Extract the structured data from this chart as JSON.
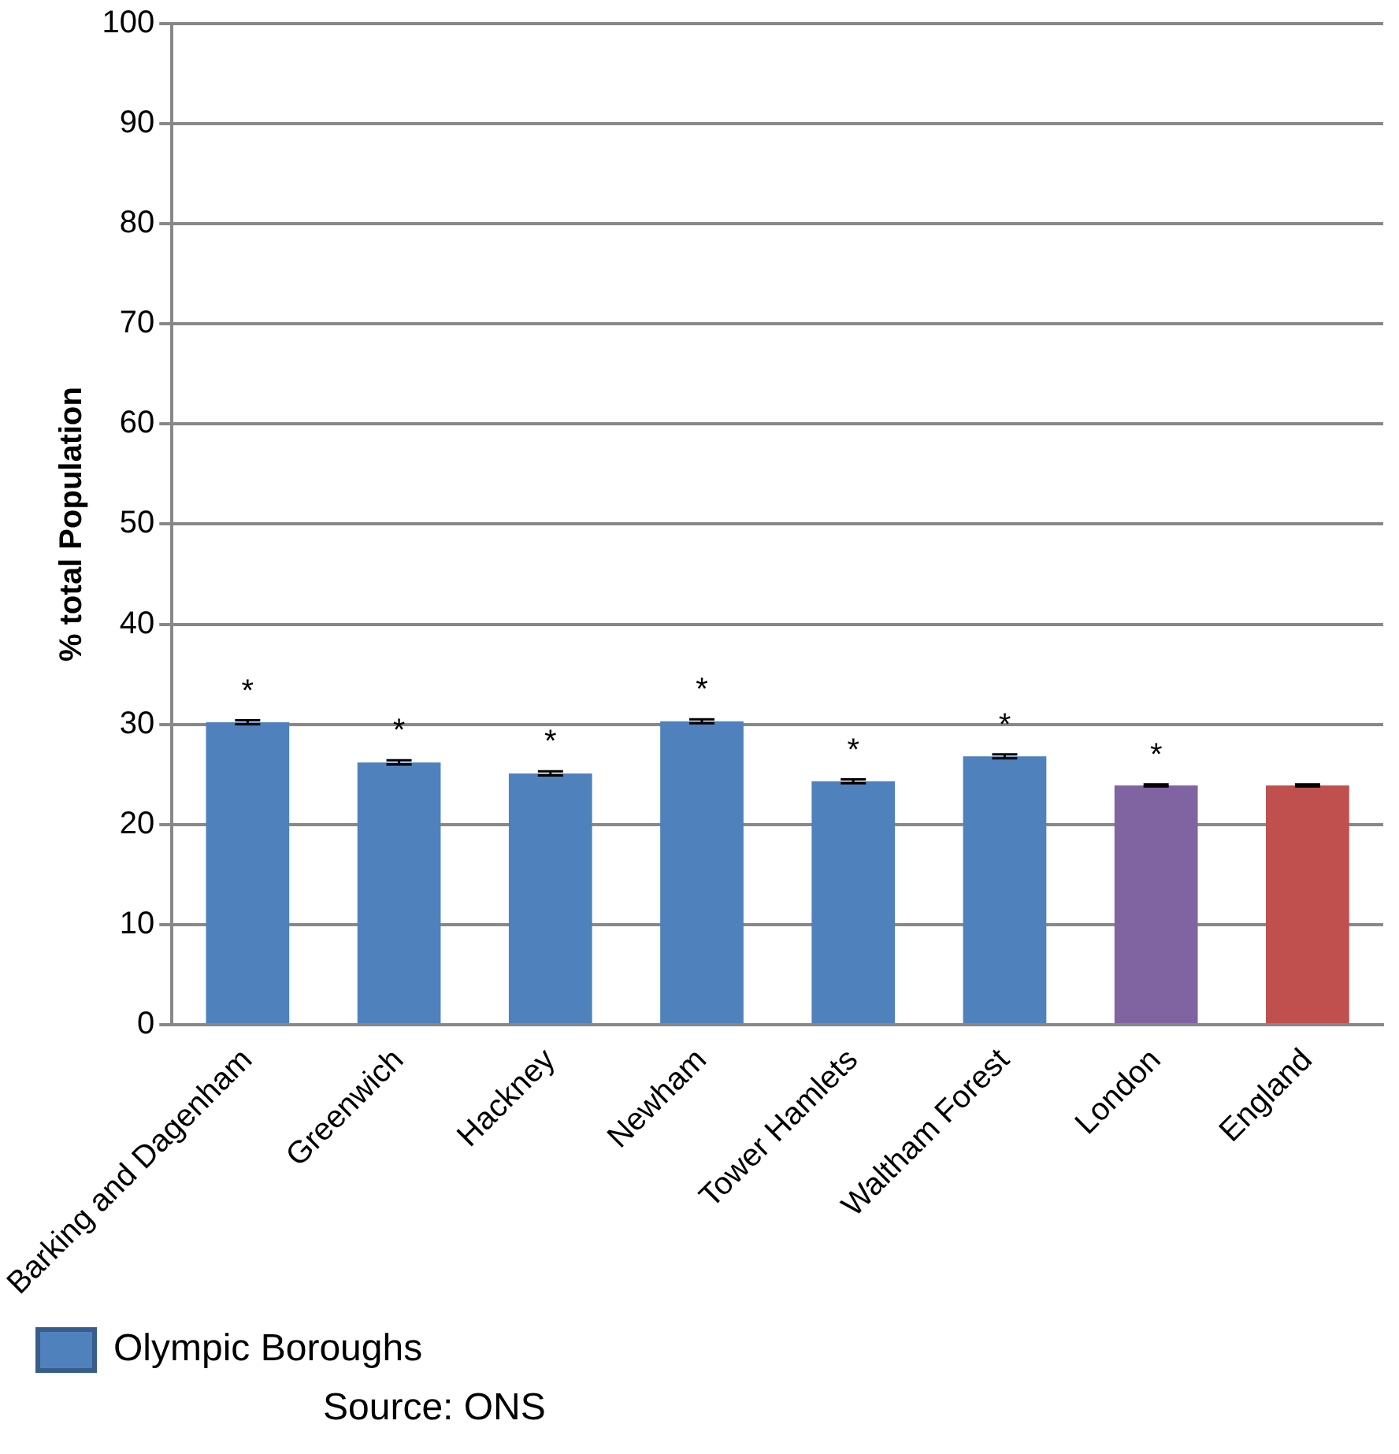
{
  "chart_data": {
    "type": "bar",
    "ylabel": "% total Population",
    "categories": [
      "Barking and Dagenham",
      "Greenwich",
      "Hackney",
      "Newham",
      "Tower Hamlets",
      "Waltham Forest",
      "London",
      "England"
    ],
    "series": [
      {
        "name": "Olympic Boroughs",
        "color": "#4f81bd",
        "colors": [
          "#4f81bd",
          "#4f81bd",
          "#4f81bd",
          "#4f81bd",
          "#4f81bd",
          "#4f81bd",
          "#8064a2",
          "#c0504d"
        ],
        "values": [
          30.2,
          26.2,
          25.1,
          30.3,
          24.3,
          26.8,
          23.9,
          23.9
        ],
        "errors": [
          0.2,
          0.2,
          0.2,
          0.2,
          0.2,
          0.2,
          0.1,
          0.1
        ],
        "value_labels": [
          "*",
          "*",
          "*",
          "*",
          "*",
          "*",
          "*",
          null
        ]
      }
    ],
    "ylim": [
      0,
      100
    ],
    "yticks": [
      0,
      10,
      20,
      30,
      40,
      50,
      60,
      70,
      80,
      90,
      100
    ],
    "grid": "y",
    "legend": "bottom",
    "annotations": [
      "Source: ONS"
    ]
  }
}
